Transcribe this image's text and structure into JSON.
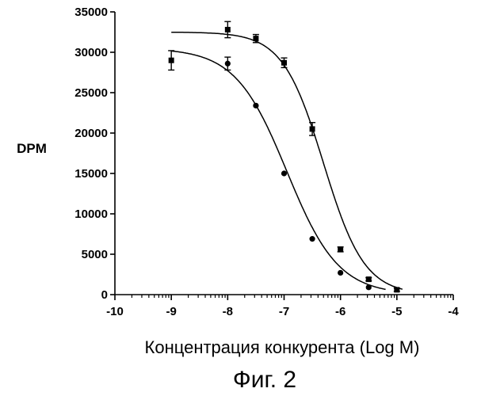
{
  "chart_data": {
    "type": "scatter",
    "xlabel": "Концентрация конкурента (Log M)",
    "ylabel": "DPM",
    "caption": "Фиг. 2",
    "xlim": [
      -10,
      -4
    ],
    "ylim": [
      0,
      35000
    ],
    "x_ticks": [
      -10,
      -9,
      -8,
      -7,
      -6,
      -5,
      -4
    ],
    "y_ticks": [
      0,
      5000,
      10000,
      15000,
      20000,
      25000,
      30000,
      35000
    ],
    "grid": false,
    "series": [
      {
        "marker": "square",
        "x": [
          -9,
          -8,
          -7.5,
          -7,
          -6.5,
          -6,
          -5.5,
          -5
        ],
        "y": [
          29000,
          32800,
          31700,
          28700,
          20500,
          5600,
          1900,
          600
        ],
        "err": [
          1200,
          1000,
          500,
          600,
          800,
          300,
          200,
          200
        ],
        "fit": {
          "top": 32500,
          "bottom": 0,
          "logEC50": -6.3,
          "hill": 1.2,
          "x_start": -9,
          "x_end": -4.9
        }
      },
      {
        "marker": "circle",
        "x": [
          -8,
          -7.5,
          -7,
          -6.5,
          -6,
          -5.5
        ],
        "y": [
          28600,
          23400,
          15000,
          6900,
          2700,
          900
        ],
        "err": [
          800,
          0,
          0,
          0,
          0,
          0
        ],
        "fit": {
          "top": 30500,
          "bottom": 0,
          "logEC50": -6.95,
          "hill": 0.95,
          "x_start": -9,
          "x_end": -5.2
        }
      }
    ]
  }
}
